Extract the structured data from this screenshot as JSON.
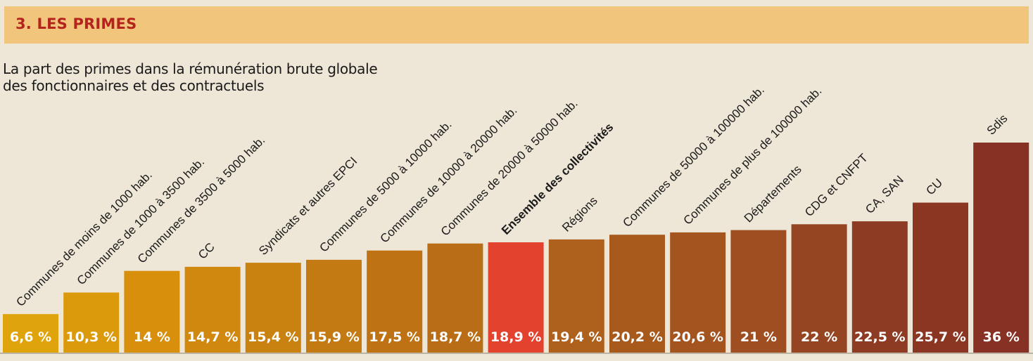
{
  "header": {
    "title": "3. LES PRIMES"
  },
  "subtitle": {
    "line1": "La part des primes dans la rémunération brute globale",
    "line2": "des fonctionnaires et des contractuels"
  },
  "colors": {
    "header_band": "#f1c67c",
    "header_text": "#b5241c",
    "highlight_bar": "#e3432e",
    "bar_gradient": [
      "#dfa40b",
      "#d78f0c",
      "#c9810f",
      "#be7214",
      "#b3671a",
      "#a85a1d",
      "#9e4e21",
      "#8d3b22",
      "#863124"
    ],
    "value_text": "#ffffff"
  },
  "chart_data": {
    "type": "bar",
    "title": "",
    "xlabel": "",
    "ylabel": "",
    "ylim": [
      0,
      36
    ],
    "grid": false,
    "unit": "%",
    "highlight_index": 8,
    "categories": [
      "Communes de moins de 1000 hab.",
      "Communes de 1000 à 3500 hab.",
      "Communes de 3500 à 5000 hab.",
      "CC",
      "Syndicats et autres EPCI",
      "Communes de 5000 à 10000 hab.",
      "Communes de 10000 à 20000 hab.",
      "Communes de 20000 à 50000 hab.",
      "Ensemble des collectivités",
      "Régions",
      "Communes de 50000 à 100000 hab.",
      "Communes de plus de 100000 hab.",
      "Départements",
      "CDG et CNFPT",
      "CA, SAN",
      "CU",
      "Sdis"
    ],
    "values": [
      6.6,
      10.3,
      14,
      14.7,
      15.4,
      15.9,
      17.5,
      18.7,
      18.9,
      19.4,
      20.2,
      20.6,
      21,
      22,
      22.5,
      25.7,
      36
    ],
    "value_labels": [
      "6,6 %",
      "10,3 %",
      "14 %",
      "14,7 %",
      "15,4 %",
      "15,9 %",
      "17,5 %",
      "18,7 %",
      "18,9 %",
      "19,4 %",
      "20,2 %",
      "20,6 %",
      "21 %",
      "22 %",
      "22,5 %",
      "25,7 %",
      "36 %"
    ]
  }
}
